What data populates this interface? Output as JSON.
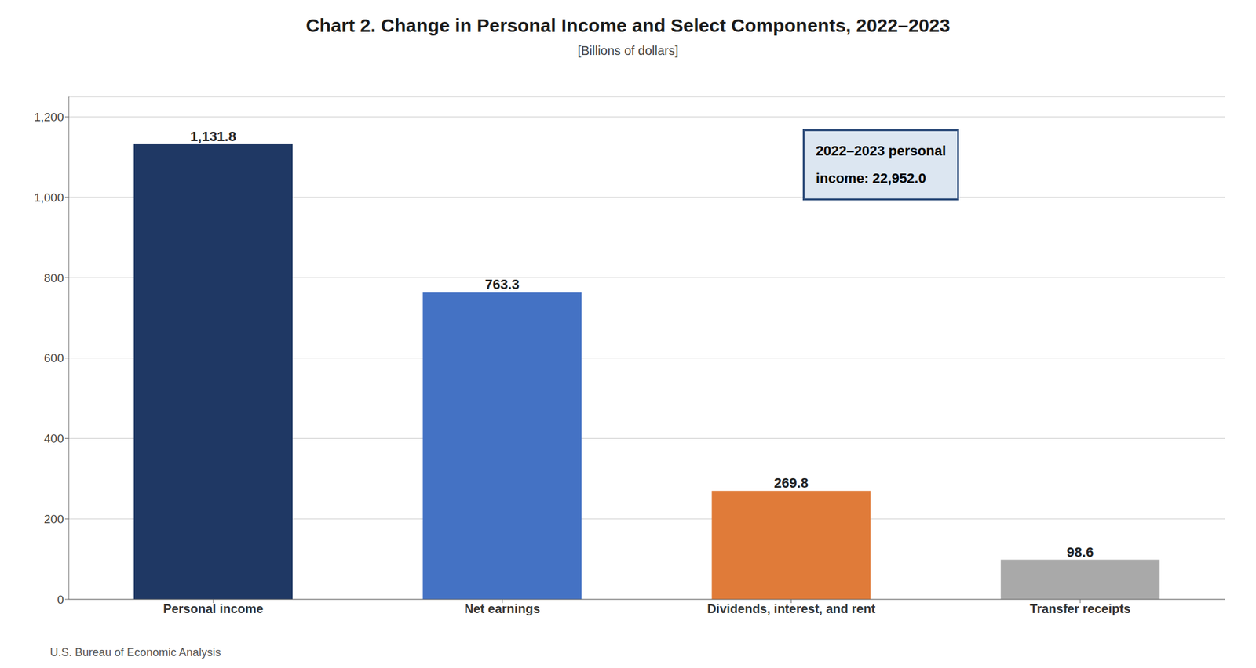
{
  "chart_data": {
    "type": "bar",
    "title": "Chart 2. Change in Personal Income and Select Components, 2022–2023",
    "subtitle": "[Billions of dollars]",
    "categories": [
      "Personal income",
      "Net earnings",
      "Dividends, interest, and rent",
      "Transfer receipts"
    ],
    "values": [
      1131.8,
      763.3,
      269.8,
      98.6
    ],
    "value_labels": [
      "1,131.8",
      "763.3",
      "269.8",
      "98.6"
    ],
    "data_labels": true,
    "colors": [
      "#1f3864",
      "#4472c4",
      "#e07b39",
      "#a9a9a9"
    ],
    "ylim": [
      0,
      1250
    ],
    "yticks": [
      0,
      200,
      400,
      600,
      800,
      {
        "value": 1000,
        "label": "1,000"
      },
      {
        "value": 1200,
        "label": "1,200"
      }
    ],
    "grid": true,
    "annotation": "2022–2023 personal\nincome: 22,952.0",
    "footer": "U.S. Bureau of Economic Analysis"
  }
}
